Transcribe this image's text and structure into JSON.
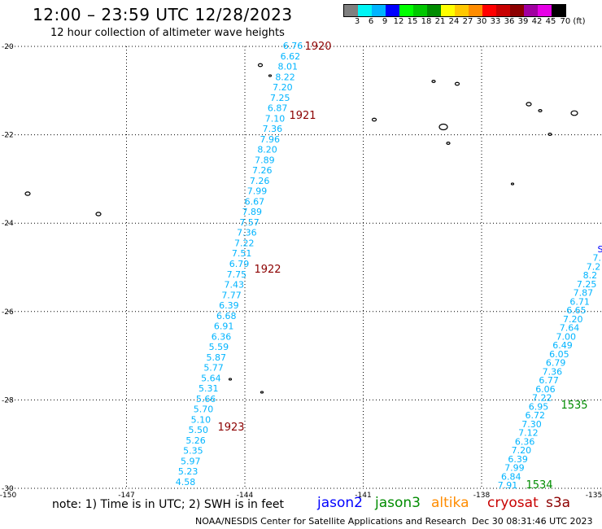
{
  "header": {
    "title": "12:00 – 23:59 UTC 12/28/2023",
    "subtitle": "12 hour collection of altimeter wave heights"
  },
  "colorbar": {
    "labels": [
      "3",
      "6",
      "9",
      "12",
      "15",
      "18",
      "21",
      "24",
      "27",
      "30",
      "33",
      "36",
      "39",
      "42",
      "45",
      "70 (ft)"
    ],
    "colors": [
      "#7f7f7f",
      "#00f5f5",
      "#00b4ff",
      "#0000ff",
      "#00ff00",
      "#00c800",
      "#008c00",
      "#ffff00",
      "#ffc800",
      "#ff8c00",
      "#ff0000",
      "#c80000",
      "#8c0000",
      "#a000a0",
      "#e600e6",
      "#000000"
    ]
  },
  "map": {
    "lon_range": [
      -150,
      -135
    ],
    "lat_range": [
      -30,
      -20
    ],
    "lon_ticks": [
      "-150",
      "-147",
      "-144",
      "-141",
      "-138",
      "-135"
    ],
    "lat_ticks": [
      "-20",
      "-22",
      "-24",
      "-26",
      "-28",
      "-30"
    ],
    "track_west": {
      "color": "#00b4ff",
      "values": [
        "6.76",
        "6.62",
        "8.01",
        "8.22",
        "7.20",
        "7.25",
        "6.87",
        "7.10",
        "7.36",
        "7.96",
        "8.20",
        "7.89",
        "7.26",
        "7.26",
        "7.99",
        "6.67",
        "7.89",
        "7.57",
        "7.36",
        "7.22",
        "7.51",
        "6.79",
        "7.75",
        "7.43",
        "7.77",
        "6.39",
        "6.68",
        "6.91",
        "6.36",
        "5.59",
        "5.87",
        "5.77",
        "5.64",
        "5.31",
        "5.66",
        "5.70",
        "5.10",
        "5.50",
        "5.26",
        "5.35",
        "5.97",
        "5.23",
        "4.58"
      ],
      "time_labels": [
        {
          "text": "1920",
          "color": "#8c0000"
        },
        {
          "text": "1921",
          "color": "#8c0000"
        },
        {
          "text": "1922",
          "color": "#8c0000"
        },
        {
          "text": "1923",
          "color": "#8c0000"
        }
      ]
    },
    "track_east": {
      "color": "#00b4ff",
      "values": [
        "7.91",
        "6.84",
        "7.99",
        "6.39",
        "7.20",
        "6.36",
        "7.12",
        "7.30",
        "6.72",
        "6.95",
        "7.22",
        "6.06",
        "6.77",
        "7.36",
        "6.79",
        "6.05",
        "6.49",
        "7.00",
        "7.64",
        "7.20",
        "6.65",
        "6.71",
        "7.87",
        "7.25",
        "8.2",
        "7.2",
        "7.",
        "S"
      ],
      "time_labels": [
        {
          "text": "1534",
          "color": "#008c00"
        },
        {
          "text": "1535",
          "color": "#008c00"
        }
      ]
    }
  },
  "footer": {
    "note": "note:  1) Time is in UTC;  2) SWH is in feet",
    "satellites": [
      {
        "name": "jason2",
        "color": "#0000ff"
      },
      {
        "name": "jason3",
        "color": "#008c00"
      },
      {
        "name": "altika",
        "color": "#ff8c00"
      },
      {
        "name": "cryosat",
        "color": "#c80000"
      },
      {
        "name": "s3a",
        "color": "#8c0000"
      }
    ],
    "credit": "NOAA/NESDIS Center for Satellite Applications and Research",
    "timestamp": "Dec 30 08:31:46 UTC 2023"
  }
}
